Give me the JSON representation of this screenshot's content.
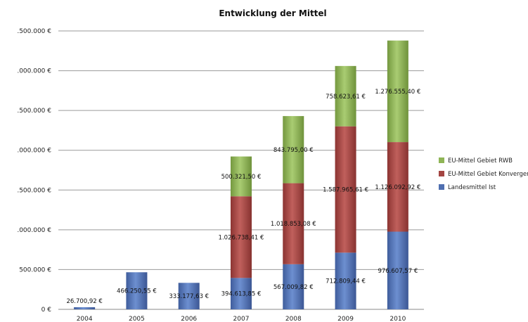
{
  "chart_data": {
    "type": "bar",
    "stacked": true,
    "title": "Entwicklung der Mittel",
    "categories": [
      "2004",
      "2005",
      "2006",
      "2007",
      "2008",
      "2009",
      "2010"
    ],
    "y_ticks": [
      {
        "value": 0,
        "label": "0 €"
      },
      {
        "value": 500000,
        "label": "500.000 €"
      },
      {
        "value": 1000000,
        "label": ".000.000 €"
      },
      {
        "value": 1500000,
        "label": ".500.000 €"
      },
      {
        "value": 2000000,
        "label": ".000.000 €"
      },
      {
        "value": 2500000,
        "label": ".500.000 €"
      },
      {
        "value": 3000000,
        "label": ".000.000 €"
      },
      {
        "value": 3500000,
        "label": ".500.000 €"
      }
    ],
    "ylim": [
      0,
      3500000
    ],
    "grid": true,
    "legend_position": "right",
    "series": [
      {
        "name": "Landesmittel Ist",
        "color": "#4f6fb0",
        "values": [
          26700.92,
          466250.55,
          333177.63,
          394613.85,
          567009.82,
          712809.44,
          976607.57
        ],
        "labels": [
          "26.700,92 €",
          "466.250,55 €",
          "333.177,63 €",
          "394.613,85 €",
          "567.009,82 €",
          "712.809,44 €",
          "976.607,57 €"
        ]
      },
      {
        "name": "EU-Mittel Gebiet Konvergenz",
        "color": "#a44542",
        "values": [
          null,
          null,
          null,
          1026738.41,
          1018853.08,
          1587965.61,
          1126092.92
        ],
        "labels": [
          null,
          null,
          null,
          "1.026.738,41 €",
          "1.018.853,08 €",
          "1.587.965,61 €",
          "1.126.092,92 €"
        ]
      },
      {
        "name": "EU-Mittel Gebiet RWB",
        "color": "#8fb556",
        "values": [
          null,
          null,
          null,
          500321.5,
          843795.0,
          758623.61,
          1276555.4
        ],
        "labels": [
          null,
          null,
          null,
          "500.321,50 €",
          "843.795,00 €",
          "758.623,61 €",
          "1.276.555,40 €"
        ]
      }
    ]
  }
}
